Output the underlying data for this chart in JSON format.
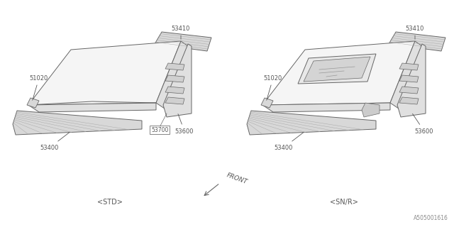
{
  "background_color": "#ffffff",
  "border_color": "#aaaaaa",
  "line_color": "#666666",
  "label_color": "#555555",
  "fig_width": 6.4,
  "fig_height": 3.2,
  "watermark": "A505001616",
  "left_label": "<STD>",
  "right_label": "<SN/R>",
  "front_label": "FRONT",
  "roof_face_color": "#f5f5f5",
  "roof_side_color": "#e0e0e0",
  "rail_color": "#d8d8d8",
  "rib_color": "#cccccc"
}
